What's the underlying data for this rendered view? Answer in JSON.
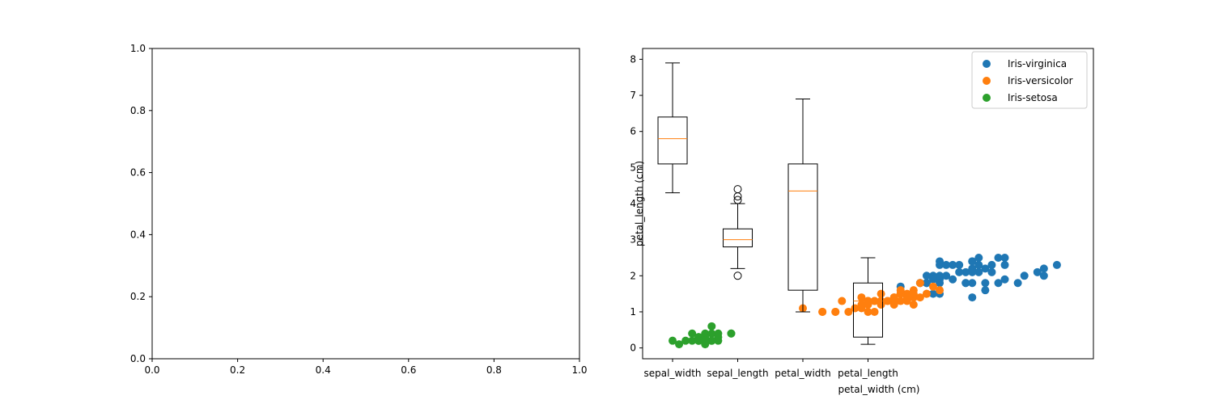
{
  "chart_data": [
    {
      "type": "scatter",
      "title": "",
      "xlabel": "",
      "ylabel": "",
      "xlim": [
        0,
        1
      ],
      "ylim": [
        0,
        1
      ],
      "x_ticks": [
        "0.0",
        "0.2",
        "0.4",
        "0.6",
        "0.8",
        "1.0"
      ],
      "y_ticks": [
        "0.0",
        "0.2",
        "0.4",
        "0.6",
        "0.8",
        "1.0"
      ],
      "series": []
    },
    {
      "type": "scatter",
      "title": "",
      "xlabel": "petal_width (cm)",
      "ylabel": "petal_length (cm)",
      "ylim": [
        -0.3,
        8.3
      ],
      "y_ticks": [
        "0",
        "1",
        "2",
        "3",
        "4",
        "5",
        "6",
        "7",
        "8"
      ],
      "grid": false,
      "legend_position": "top-right",
      "boxplot": {
        "categories": [
          "sepal_width",
          "sepal_length",
          "petal_width",
          "petal_length"
        ],
        "boxes": [
          {
            "whisker_low": 4.3,
            "q1": 5.1,
            "median": 5.8,
            "q3": 6.4,
            "whisker_high": 7.9,
            "outliers": []
          },
          {
            "whisker_low": 2.2,
            "q1": 2.8,
            "median": 3.0,
            "q3": 3.3,
            "whisker_high": 4.0,
            "outliers": [
              4.4,
              4.2,
              4.1,
              2.0
            ]
          },
          {
            "whisker_low": 1.0,
            "q1": 1.6,
            "median": 4.35,
            "q3": 5.1,
            "whisker_high": 6.9,
            "outliers": []
          },
          {
            "whisker_low": 0.1,
            "q1": 0.3,
            "median": 1.3,
            "q3": 1.8,
            "whisker_high": 2.5,
            "outliers": []
          }
        ]
      },
      "series": [
        {
          "name": "Iris-virginica",
          "color": "#1f77b4",
          "points": [
            [
              6.0,
              2.5
            ],
            [
              5.1,
              1.9
            ],
            [
              5.9,
              2.1
            ],
            [
              5.6,
              1.8
            ],
            [
              5.8,
              2.2
            ],
            [
              6.6,
              2.1
            ],
            [
              4.5,
              1.7
            ],
            [
              6.3,
              1.8
            ],
            [
              5.8,
              1.8
            ],
            [
              6.1,
              2.5
            ],
            [
              5.1,
              2.0
            ],
            [
              5.3,
              1.9
            ],
            [
              5.5,
              2.1
            ],
            [
              5.0,
              2.0
            ],
            [
              5.1,
              2.4
            ],
            [
              5.3,
              2.3
            ],
            [
              5.5,
              1.8
            ],
            [
              6.7,
              2.2
            ],
            [
              6.9,
              2.3
            ],
            [
              5.0,
              1.5
            ],
            [
              5.7,
              2.3
            ],
            [
              4.9,
              2.0
            ],
            [
              6.7,
              2.0
            ],
            [
              4.9,
              1.8
            ],
            [
              5.7,
              2.1
            ],
            [
              6.0,
              1.8
            ],
            [
              4.8,
              1.8
            ],
            [
              4.9,
              1.8
            ],
            [
              5.6,
              2.1
            ],
            [
              5.8,
              1.6
            ],
            [
              6.1,
              1.9
            ],
            [
              6.4,
              2.0
            ],
            [
              5.6,
              2.2
            ],
            [
              5.1,
              1.5
            ],
            [
              5.6,
              1.4
            ],
            [
              6.1,
              2.3
            ],
            [
              5.6,
              2.4
            ],
            [
              5.5,
              1.8
            ],
            [
              4.8,
              1.8
            ],
            [
              5.4,
              2.1
            ],
            [
              5.6,
              2.4
            ],
            [
              5.1,
              2.3
            ],
            [
              5.9,
              2.3
            ],
            [
              5.7,
              2.5
            ],
            [
              5.2,
              2.3
            ],
            [
              5.0,
              1.9
            ],
            [
              5.2,
              2.0
            ],
            [
              5.4,
              2.3
            ],
            [
              5.1,
              1.8
            ]
          ]
        },
        {
          "name": "Iris-versicolor",
          "color": "#ff7f0e",
          "points": [
            [
              4.7,
              1.4
            ],
            [
              4.5,
              1.5
            ],
            [
              4.9,
              1.5
            ],
            [
              4.0,
              1.3
            ],
            [
              4.6,
              1.5
            ],
            [
              4.5,
              1.3
            ],
            [
              4.7,
              1.6
            ],
            [
              3.3,
              1.0
            ],
            [
              4.6,
              1.3
            ],
            [
              3.9,
              1.4
            ],
            [
              3.5,
              1.0
            ],
            [
              4.2,
              1.5
            ],
            [
              4.0,
              1.0
            ],
            [
              4.7,
              1.4
            ],
            [
              3.6,
              1.3
            ],
            [
              4.4,
              1.4
            ],
            [
              4.5,
              1.5
            ],
            [
              4.1,
              1.0
            ],
            [
              4.5,
              1.5
            ],
            [
              3.9,
              1.1
            ],
            [
              4.8,
              1.8
            ],
            [
              4.0,
              1.3
            ],
            [
              4.9,
              1.5
            ],
            [
              4.7,
              1.2
            ],
            [
              4.3,
              1.3
            ],
            [
              4.4,
              1.4
            ],
            [
              4.8,
              1.4
            ],
            [
              5.0,
              1.7
            ],
            [
              4.5,
              1.5
            ],
            [
              3.5,
              1.0
            ],
            [
              3.8,
              1.1
            ],
            [
              3.7,
              1.0
            ],
            [
              3.9,
              1.2
            ],
            [
              5.1,
              1.6
            ],
            [
              4.5,
              1.5
            ],
            [
              4.5,
              1.6
            ],
            [
              4.7,
              1.5
            ],
            [
              4.4,
              1.3
            ],
            [
              4.1,
              1.3
            ],
            [
              4.0,
              1.3
            ],
            [
              4.4,
              1.2
            ],
            [
              4.6,
              1.4
            ],
            [
              4.0,
              1.2
            ],
            [
              3.3,
              1.0
            ],
            [
              4.2,
              1.3
            ],
            [
              4.2,
              1.2
            ],
            [
              4.2,
              1.3
            ],
            [
              4.3,
              1.3
            ],
            [
              3.0,
              1.1
            ],
            [
              4.1,
              1.3
            ]
          ]
        },
        {
          "name": "Iris-setosa",
          "color": "#2ca02c",
          "points": [
            [
              1.4,
              0.2
            ],
            [
              1.3,
              0.2
            ],
            [
              1.5,
              0.2
            ],
            [
              1.7,
              0.4
            ],
            [
              1.4,
              0.3
            ],
            [
              1.5,
              0.1
            ],
            [
              1.1,
              0.1
            ],
            [
              1.2,
              0.2
            ],
            [
              1.7,
              0.3
            ],
            [
              1.5,
              0.4
            ],
            [
              1.3,
              0.4
            ],
            [
              1.4,
              0.3
            ],
            [
              1.7,
              0.2
            ],
            [
              1.5,
              0.3
            ],
            [
              1.0,
              0.2
            ],
            [
              1.9,
              0.4
            ],
            [
              1.6,
              0.2
            ],
            [
              1.6,
              0.4
            ],
            [
              1.5,
              0.2
            ],
            [
              1.4,
              0.2
            ],
            [
              1.6,
              0.2
            ],
            [
              1.6,
              0.6
            ],
            [
              1.9,
              0.4
            ],
            [
              1.4,
              0.3
            ],
            [
              1.6,
              0.2
            ],
            [
              1.4,
              0.2
            ],
            [
              1.5,
              0.2
            ],
            [
              1.4,
              0.2
            ]
          ]
        }
      ]
    }
  ]
}
